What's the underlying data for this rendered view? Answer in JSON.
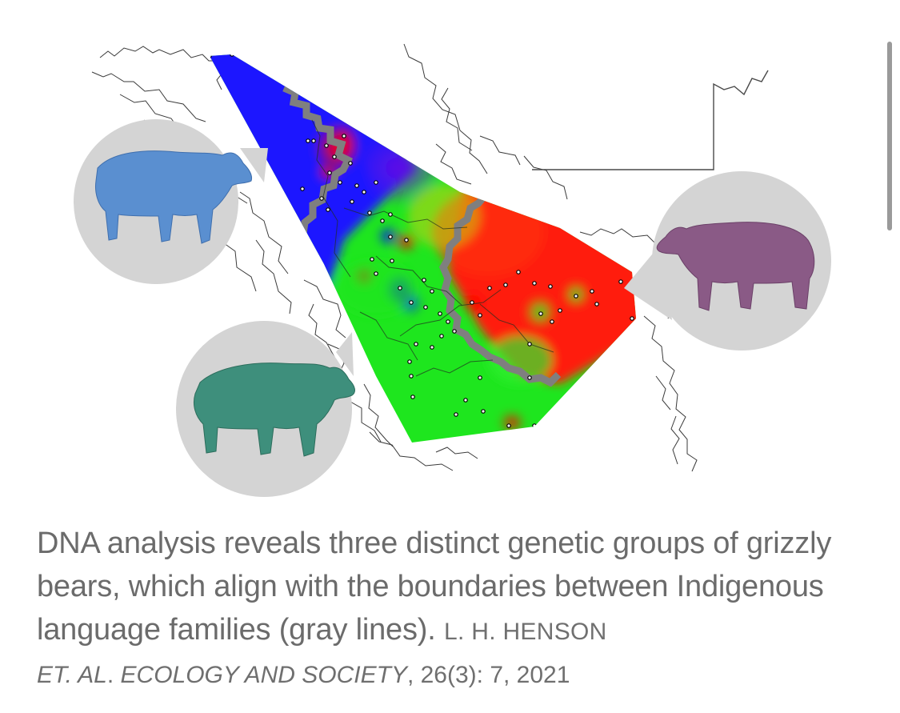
{
  "figure": {
    "colors": {
      "group_blue": "#1414ff",
      "group_red": "#ff1a0a",
      "group_green": "#1ee61e",
      "language_boundary": "#7f7f7f",
      "bear_blue": "#5a8fd0",
      "bear_teal": "#3e8f7c",
      "bear_purple": "#8a5a86",
      "inset_circle": "#d4d4d4"
    },
    "icons": [
      "bear-blue-icon",
      "bear-teal-icon",
      "bear-purple-icon"
    ]
  },
  "caption": {
    "text": "DNA analysis reveals three distinct genetic groups of grizzly bears, which align with the boundaries between Indigenous language families (gray lines).",
    "credit_authors": "L. H. HENSON",
    "credit_et_al": "ET. AL",
    "credit_dot": ".",
    "credit_journal": "ECOLOGY AND SOCIETY",
    "credit_rest": ", 26(3): 7, 2021"
  }
}
